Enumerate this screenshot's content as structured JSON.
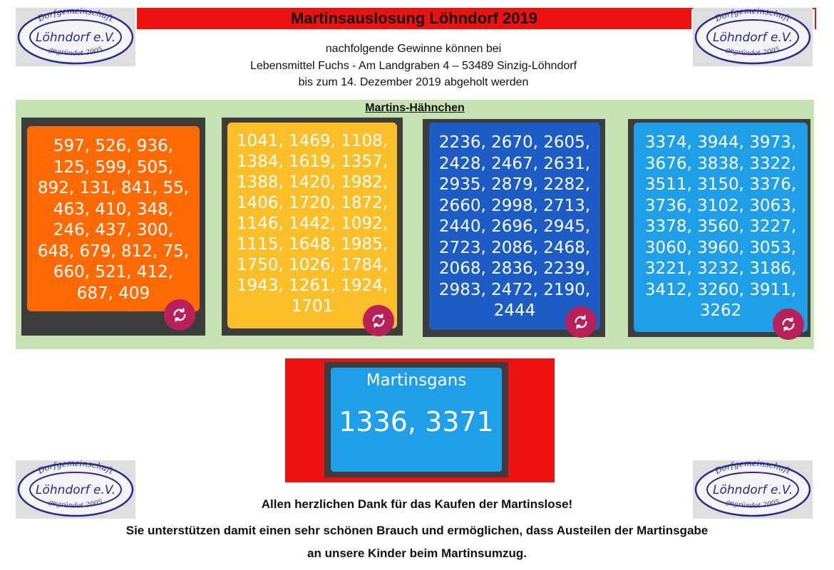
{
  "header": {
    "title": "Martinsauslosung Löhndorf 2019",
    "lines": [
      "nachfolgende Gewinne können bei",
      "Lebensmittel Fuchs - Am Landgraben 4 – 53489 Sinzig-Löhndorf",
      "bis zum 14. Dezember 2019 abgeholt werden"
    ]
  },
  "logo": {
    "top_text": "Dorfgemeinschaft",
    "middle_text": "Löhndorf e.V.",
    "bottom_text": "gegründet 2005"
  },
  "haehnchen": {
    "title": "Martins-Hähnchen",
    "cards": [
      {
        "color": "#ff6a05",
        "lines": [
          "597, 526, 936,",
          "125, 599, 505,",
          "892, 131, 841, 55,",
          "463, 410, 348,",
          "246, 437, 300,",
          "648, 679, 812, 75,",
          "660, 521, 412,",
          "687, 409"
        ]
      },
      {
        "color": "#fbbf2a",
        "lines": [
          "1041, 1469, 1108,",
          "1384, 1619, 1357,",
          "1388, 1420, 1982,",
          "1406, 1720, 1872,",
          "1146, 1442, 1092,",
          "1115, 1648, 1985,",
          "1750, 1026, 1784,",
          "1943, 1261, 1924,",
          "1701"
        ]
      },
      {
        "color": "#1c5cc4",
        "lines": [
          "2236, 2670, 2605,",
          "2428, 2467, 2631,",
          "2935, 2879, 2282,",
          "2660, 2998, 2713,",
          "2440, 2696, 2945,",
          "2723, 2086, 2468,",
          "2068, 2836, 2239,",
          "2983, 2472, 2190,",
          "2444"
        ]
      },
      {
        "color": "#1f9fe8",
        "lines": [
          "3374, 3944, 3973,",
          "3676, 3838, 3322,",
          "3511, 3150, 3376,",
          "3736, 3102, 3063,",
          "3378, 3560, 3227,",
          "3060, 3960, 3053,",
          "3221, 3232, 3186,",
          "3412, 3260, 3911,",
          "3262"
        ]
      }
    ],
    "button_icon": "refresh-icon",
    "button_color": "#b8205a"
  },
  "gans": {
    "title": "Martinsgans",
    "numbers": "1336, 3371"
  },
  "footer": {
    "line1": "Allen herzlichen Dank für das Kaufen der Martinslose!",
    "line2": "Sie unterstützen damit einen sehr schönen Brauch und ermöglichen, dass Austeilen der Martinsgabe",
    "line3": "an unsere Kinder beim Martinsumzug."
  }
}
